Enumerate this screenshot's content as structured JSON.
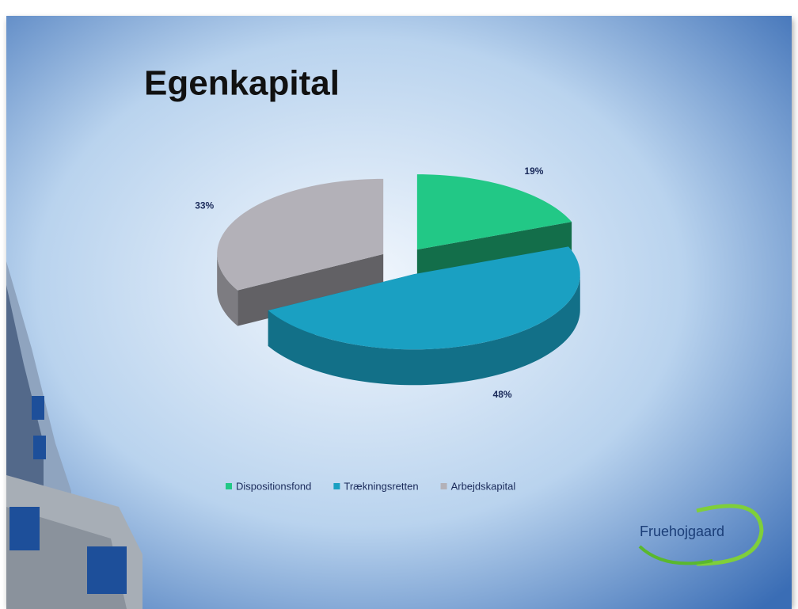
{
  "chart_data": {
    "type": "pie",
    "title": "Egenkapital",
    "categories": [
      "Dispositionsfond",
      "Trækningsretten",
      "Arbejdskapital"
    ],
    "values": [
      19,
      48,
      33
    ],
    "value_labels": [
      "19%",
      "48%",
      "33%"
    ],
    "colors": [
      "#22c886",
      "#1aa0c2",
      "#b3b1b8"
    ],
    "logo": "Fruehojgaard"
  }
}
